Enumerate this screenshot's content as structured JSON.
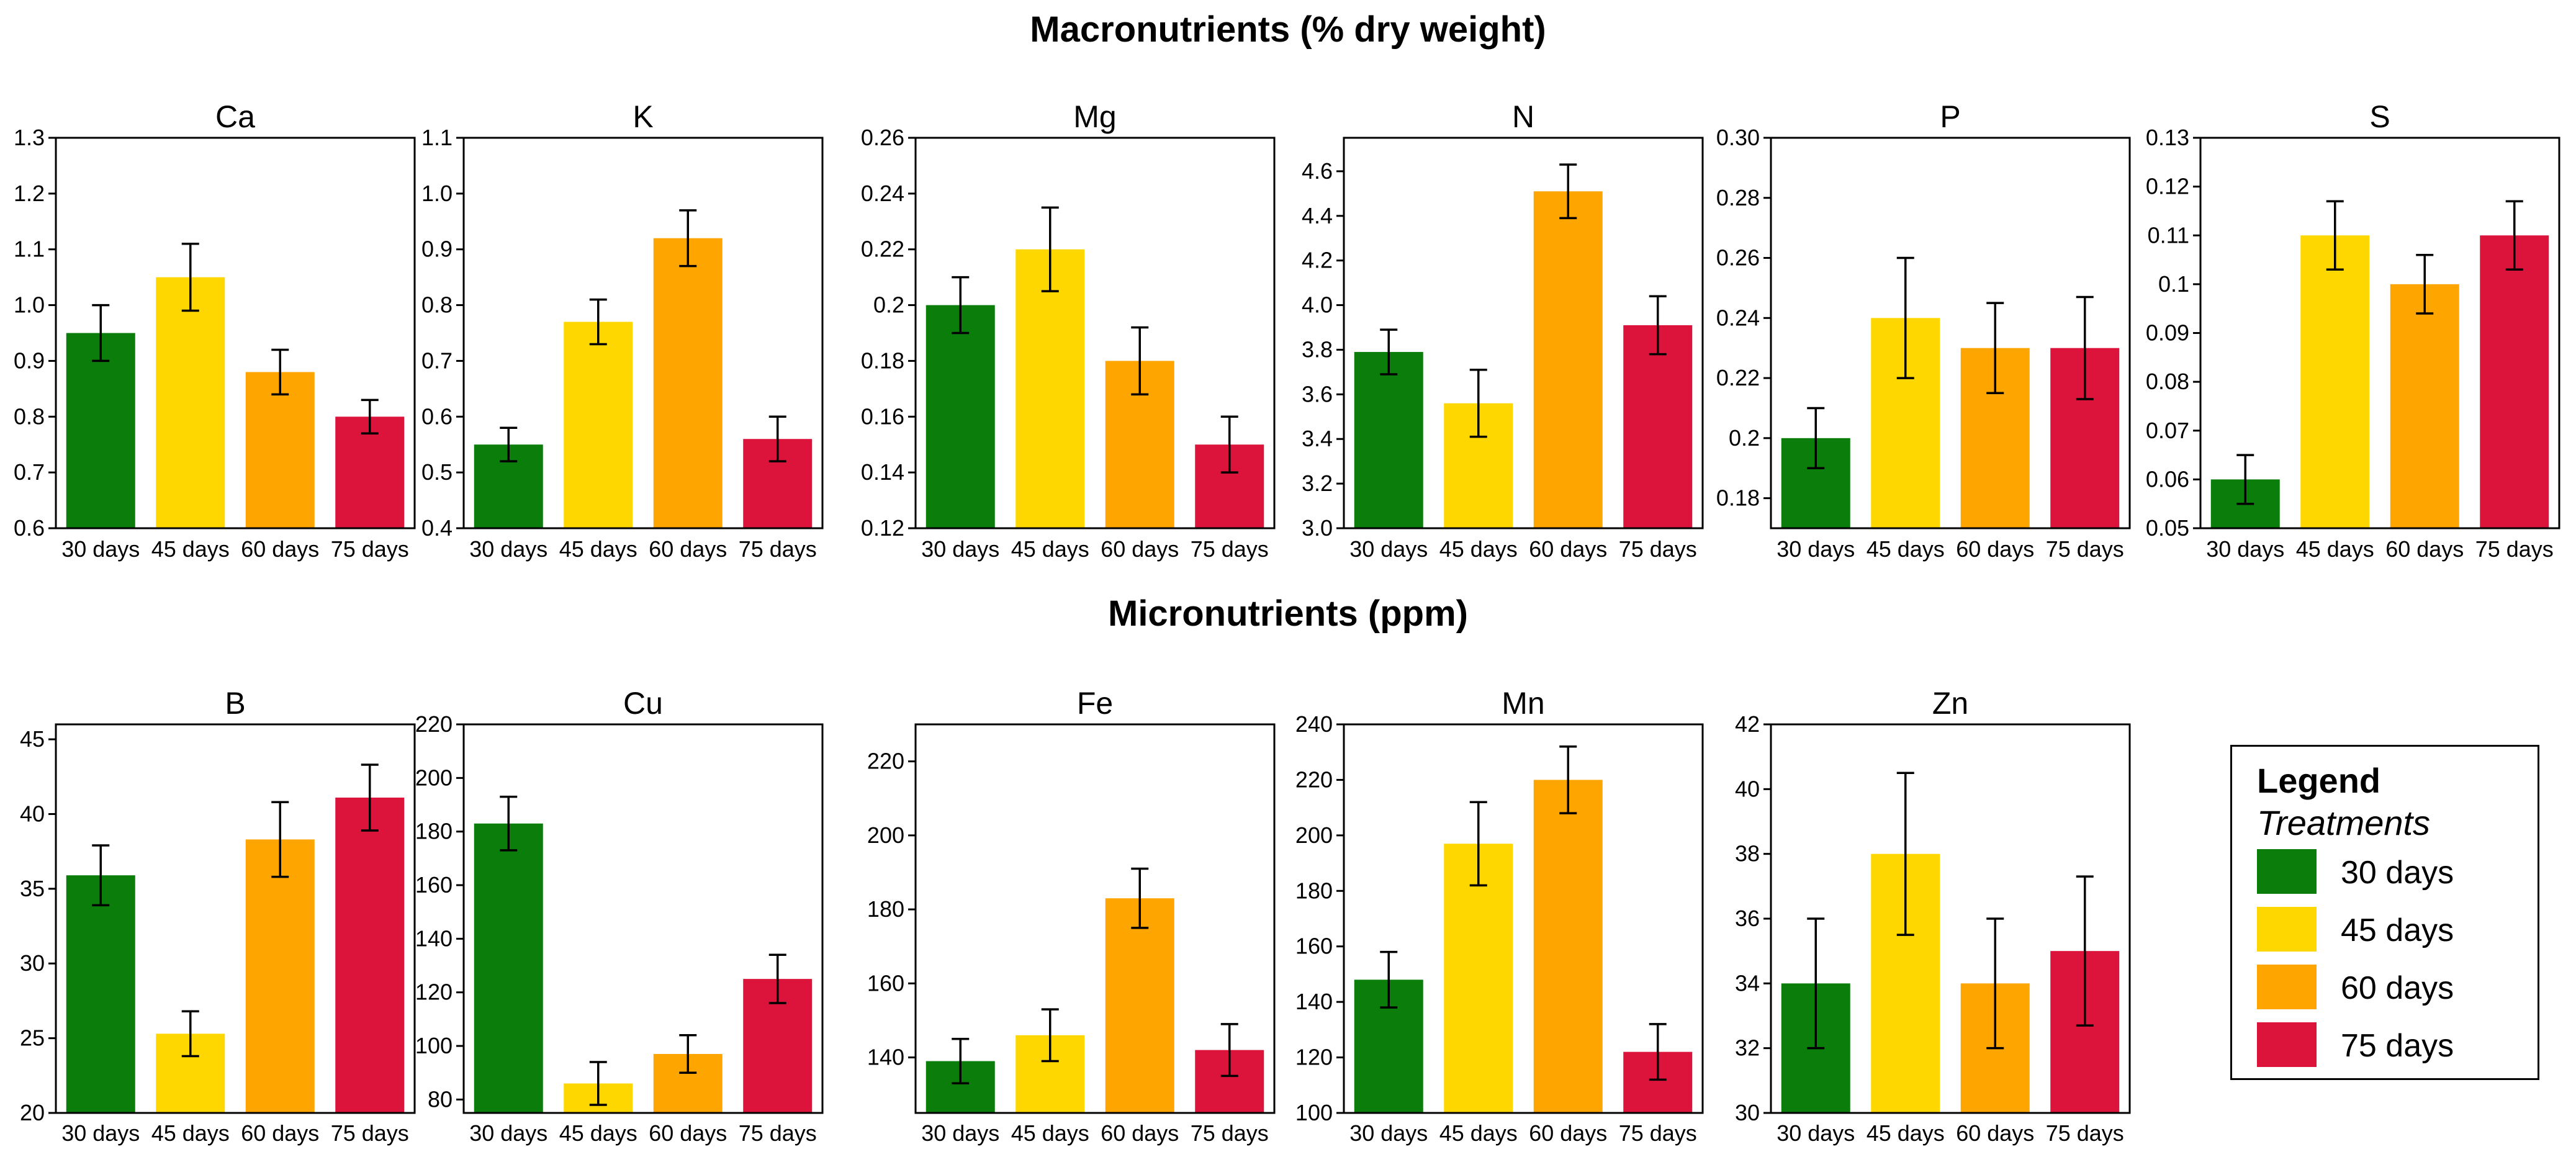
{
  "titles": {
    "macro": "Macronutrients (% dry weight)",
    "micro": "Micronutrients (ppm)"
  },
  "legend": {
    "title": "Legend",
    "subtitle": "Treatments",
    "items": [
      {
        "label": "30 days",
        "color": "#0a7d0a"
      },
      {
        "label": "45 days",
        "color": "#ffd700"
      },
      {
        "label": "60 days",
        "color": "#ffa500"
      },
      {
        "label": "75 days",
        "color": "#dc143c"
      }
    ]
  },
  "chart_data": [
    {
      "type": "bar",
      "title": "Ca",
      "categories": [
        "30 days",
        "45 days",
        "60 days",
        "75 days"
      ],
      "values": [
        0.95,
        1.05,
        0.88,
        0.8
      ],
      "errors": [
        0.05,
        0.06,
        0.04,
        0.03
      ],
      "ylim": [
        0.6,
        1.3
      ],
      "ticks": [
        "0.6",
        "0.7",
        "0.8",
        "0.9",
        "1.0",
        "1.1",
        "1.2",
        "1.3"
      ]
    },
    {
      "type": "bar",
      "title": "K",
      "categories": [
        "30 days",
        "45 days",
        "60 days",
        "75 days"
      ],
      "values": [
        0.55,
        0.77,
        0.92,
        0.56
      ],
      "errors": [
        0.03,
        0.04,
        0.05,
        0.04
      ],
      "ylim": [
        0.4,
        1.1
      ],
      "ticks": [
        "0.4",
        "0.5",
        "0.6",
        "0.7",
        "0.8",
        "0.9",
        "1.0",
        "1.1"
      ]
    },
    {
      "type": "bar",
      "title": "Mg",
      "categories": [
        "30 days",
        "45 days",
        "60 days",
        "75 days"
      ],
      "values": [
        0.2,
        0.22,
        0.18,
        0.15
      ],
      "errors": [
        0.01,
        0.015,
        0.012,
        0.01
      ],
      "ylim": [
        0.12,
        0.26
      ],
      "ticks": [
        "0.12",
        "0.14",
        "0.16",
        "0.18",
        "0.2",
        "0.22",
        "0.24",
        "0.26"
      ]
    },
    {
      "type": "bar",
      "title": "N",
      "categories": [
        "30 days",
        "45 days",
        "60 days",
        "75 days"
      ],
      "values": [
        3.79,
        3.56,
        4.51,
        3.91
      ],
      "errors": [
        0.1,
        0.15,
        0.12,
        0.13
      ],
      "ylim": [
        3.0,
        4.75
      ],
      "ticks": [
        "3.0",
        "3.2",
        "3.4",
        "3.6",
        "3.8",
        "4.0",
        "4.2",
        "4.4",
        "4.6"
      ],
      "tick_start": 3.0,
      "tick_step": 0.2
    },
    {
      "type": "bar",
      "title": "P",
      "categories": [
        "30 days",
        "45 days",
        "60 days",
        "75 days"
      ],
      "values": [
        0.2,
        0.24,
        0.23,
        0.23
      ],
      "errors": [
        0.01,
        0.02,
        0.015,
        0.017
      ],
      "ylim": [
        0.17,
        0.3
      ],
      "ticks": [
        "0.18",
        "0.2",
        "0.22",
        "0.24",
        "0.26",
        "0.28",
        "0.30"
      ],
      "tick_start": 0.18,
      "tick_step": 0.02
    },
    {
      "type": "bar",
      "title": "S",
      "categories": [
        "30 days",
        "45 days",
        "60 days",
        "75 days"
      ],
      "values": [
        0.06,
        0.11,
        0.1,
        0.11
      ],
      "errors": [
        0.005,
        0.007,
        0.006,
        0.007
      ],
      "ylim": [
        0.05,
        0.13
      ],
      "ticks": [
        "0.05",
        "0.06",
        "0.07",
        "0.08",
        "0.09",
        "0.1",
        "0.11",
        "0.12",
        "0.13"
      ]
    },
    {
      "type": "bar",
      "title": "B",
      "categories": [
        "30 days",
        "45 days",
        "60 days",
        "75 days"
      ],
      "values": [
        35.9,
        25.3,
        38.3,
        41.1
      ],
      "errors": [
        2.0,
        1.5,
        2.5,
        2.2
      ],
      "ylim": [
        20,
        46
      ],
      "ticks": [
        "20",
        "25",
        "30",
        "35",
        "40",
        "45"
      ],
      "tick_start": 20,
      "tick_step": 5
    },
    {
      "type": "bar",
      "title": "Cu",
      "categories": [
        "30 days",
        "45 days",
        "60 days",
        "75 days"
      ],
      "values": [
        183,
        86,
        97,
        125
      ],
      "errors": [
        10,
        8,
        7,
        9
      ],
      "ylim": [
        75,
        220
      ],
      "ticks": [
        "80",
        "100",
        "120",
        "140",
        "160",
        "180",
        "200",
        "220"
      ],
      "tick_start": 80,
      "tick_step": 20
    },
    {
      "type": "bar",
      "title": "Fe",
      "categories": [
        "30 days",
        "45 days",
        "60 days",
        "75 days"
      ],
      "values": [
        139,
        146,
        183,
        142
      ],
      "errors": [
        6,
        7,
        8,
        7
      ],
      "ylim": [
        125,
        230
      ],
      "ticks": [
        "140",
        "160",
        "180",
        "200",
        "220"
      ],
      "tick_start": 140,
      "tick_step": 20
    },
    {
      "type": "bar",
      "title": "Mn",
      "categories": [
        "30 days",
        "45 days",
        "60 days",
        "75 days"
      ],
      "values": [
        148,
        197,
        220,
        122
      ],
      "errors": [
        10,
        15,
        12,
        10
      ],
      "ylim": [
        100,
        240
      ],
      "ticks": [
        "100",
        "120",
        "140",
        "160",
        "180",
        "200",
        "220",
        "240"
      ]
    },
    {
      "type": "bar",
      "title": "Zn",
      "categories": [
        "30 days",
        "45 days",
        "60 days",
        "75 days"
      ],
      "values": [
        34.0,
        38.0,
        34.0,
        35.0
      ],
      "errors": [
        2.0,
        2.5,
        2.0,
        2.3
      ],
      "ylim": [
        30,
        42
      ],
      "ticks": [
        "30",
        "32",
        "34",
        "36",
        "38",
        "40",
        "42"
      ]
    }
  ]
}
